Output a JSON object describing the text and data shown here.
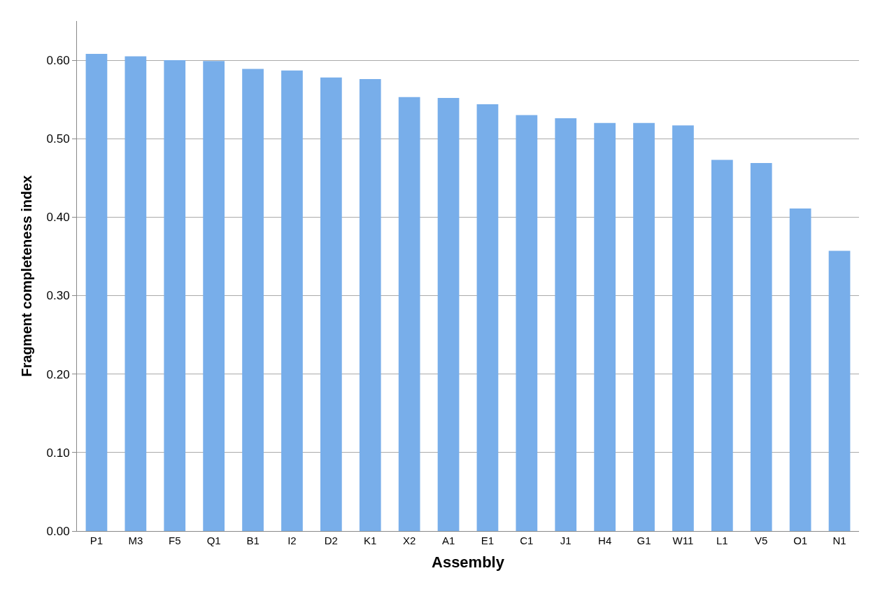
{
  "chart_data": {
    "type": "bar",
    "xlabel": "Assembly",
    "ylabel": "Fragment completeness index",
    "categories": [
      "P1",
      "M3",
      "F5",
      "Q1",
      "B1",
      "I2",
      "D2",
      "K1",
      "X2",
      "A1",
      "E1",
      "C1",
      "J1",
      "H4",
      "G1",
      "W11",
      "L1",
      "V5",
      "O1",
      "N1"
    ],
    "values": [
      0.608,
      0.605,
      0.6,
      0.599,
      0.589,
      0.587,
      0.578,
      0.576,
      0.553,
      0.552,
      0.544,
      0.53,
      0.526,
      0.52,
      0.52,
      0.517,
      0.473,
      0.469,
      0.411,
      0.357
    ],
    "color": "#78aeea",
    "ylim": [
      0,
      0.65
    ],
    "yticks": [
      {
        "value": 0,
        "label": "0.00"
      },
      {
        "value": 0.1,
        "label": "0.10"
      },
      {
        "value": 0.2,
        "label": "0.20"
      },
      {
        "value": 0.3,
        "label": "0.30"
      },
      {
        "value": 0.4,
        "label": "0.40"
      },
      {
        "value": 0.5,
        "label": "0.50"
      },
      {
        "value": 0.6,
        "label": "0.60"
      }
    ],
    "grid": "y"
  }
}
